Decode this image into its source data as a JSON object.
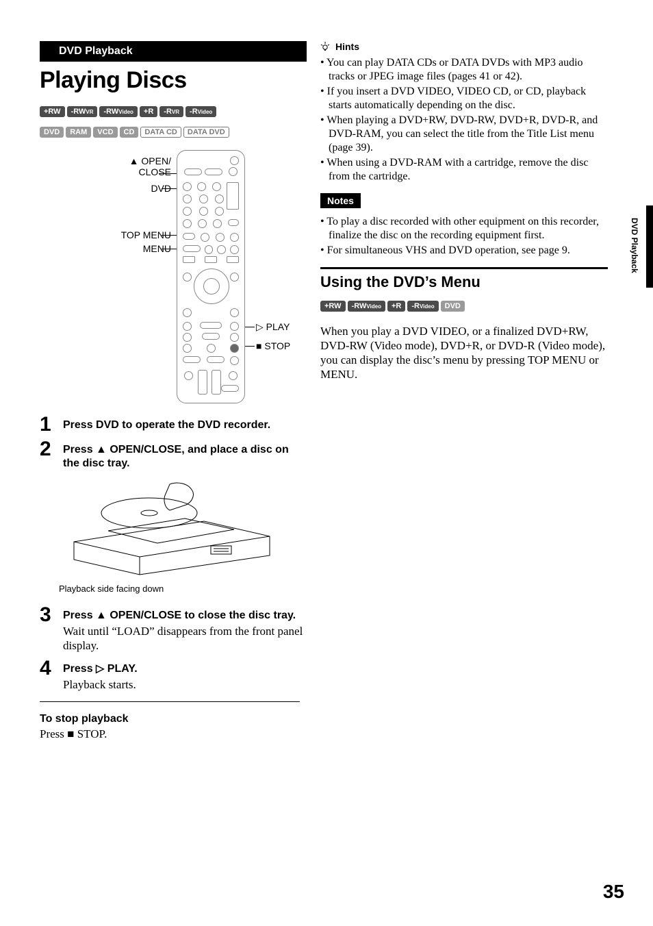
{
  "section_header": "DVD Playback",
  "title": "Playing Discs",
  "badges_row1": [
    {
      "t": "+RW",
      "cls": "blk"
    },
    {
      "t": "-RW",
      "sub": "VR",
      "cls": "blk"
    },
    {
      "t": "-RW",
      "sub": "Video",
      "cls": "blk"
    },
    {
      "t": "+R",
      "cls": "blk"
    },
    {
      "t": "-R",
      "sub": "VR",
      "cls": "blk"
    },
    {
      "t": "-R",
      "sub": "Video",
      "cls": "blk"
    }
  ],
  "badges_row2": [
    {
      "t": "DVD",
      "cls": "gry"
    },
    {
      "t": "RAM",
      "cls": "gry"
    },
    {
      "t": "VCD",
      "cls": "gry"
    },
    {
      "t": "CD",
      "cls": "gry"
    },
    {
      "t": "DATA CD",
      "cls": "out"
    },
    {
      "t": "DATA DVD",
      "cls": "out"
    }
  ],
  "remote_labels": {
    "open_close": "OPEN/\nCLOSE",
    "open_close_sym": "▲",
    "dvd": "DVD",
    "top_menu": "TOP MENU",
    "menu": "MENU",
    "play": "PLAY",
    "play_sym": "▷",
    "stop": "STOP",
    "stop_sym": "■"
  },
  "steps": [
    {
      "n": "1",
      "head": "Press DVD to operate the DVD recorder."
    },
    {
      "n": "2",
      "head": "Press ▲ OPEN/CLOSE, and place a disc on the disc tray."
    },
    {
      "n": "3",
      "head": "Press ▲ OPEN/CLOSE to close the disc tray.",
      "para": "Wait until “LOAD” disappears from the front panel display."
    },
    {
      "n": "4",
      "head": "Press ▷ PLAY.",
      "para": "Playback starts."
    }
  ],
  "tray_caption": "Playback side facing down",
  "stop_playback_head": "To stop playback",
  "stop_playback_body_pre": "Press ",
  "stop_playback_body_sym": "■",
  "stop_playback_body_post": " STOP.",
  "hints_label": "Hints",
  "hints": [
    "You can play DATA CDs or DATA DVDs with MP3 audio tracks or JPEG image files (pages 41 or 42).",
    "If you insert a DVD VIDEO, VIDEO CD, or CD, playback starts automatically depending on the disc.",
    "When playing a DVD+RW, DVD-RW, DVD+R, DVD-R, and DVD-RAM, you can select the title from the Title List menu (page 39).",
    "When using a DVD-RAM with a cartridge, remove the disc from the cartridge."
  ],
  "notes_label": "Notes",
  "notes": [
    "To play a disc recorded with other equipment on this recorder, finalize the disc on the recording equipment first.",
    "For simultaneous VHS and DVD operation, see page 9."
  ],
  "h2": "Using the DVD’s Menu",
  "badges_h2": [
    {
      "t": "+RW",
      "cls": "blk"
    },
    {
      "t": "-RW",
      "sub": "Video",
      "cls": "blk"
    },
    {
      "t": "+R",
      "cls": "blk"
    },
    {
      "t": "-R",
      "sub": "Video",
      "cls": "blk"
    },
    {
      "t": "DVD",
      "cls": "gry"
    }
  ],
  "h2_para": "When you play a DVD VIDEO, or a finalized DVD+RW, DVD-RW (Video mode), DVD+R, or DVD-R (Video mode), you can display the disc’s menu by pressing TOP MENU or MENU.",
  "side_tab": "DVD Playback",
  "page_number": "35",
  "colors": {
    "badge_dark": "#4b4b4b",
    "badge_grey": "#9a9a9a",
    "badge_outline": "#7a7a7a"
  }
}
